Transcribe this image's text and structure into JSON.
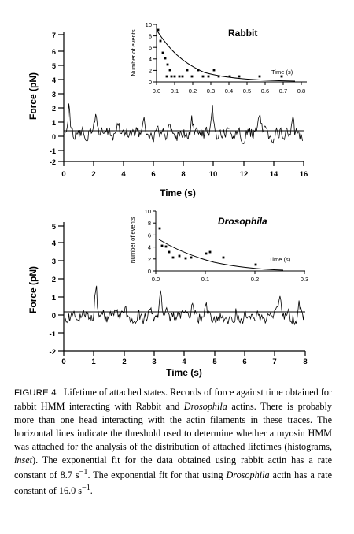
{
  "figure": {
    "top": {
      "ylabel": "Force (pN)",
      "xlabel": "Time (s)",
      "xticks": [
        "0",
        "2",
        "4",
        "6",
        "8",
        "10",
        "12",
        "14",
        "16"
      ],
      "yticks": [
        "-2",
        "-1",
        "0",
        "1",
        "2",
        "3",
        "4",
        "5",
        "6",
        "7"
      ],
      "inset": {
        "label": "Rabbit",
        "ylabel": "Number of events",
        "xlabel": "Time (s)",
        "xticks": [
          "0.0",
          "0.1",
          "0.2",
          "0.3",
          "0.4",
          "0.5",
          "0.6",
          "0.7",
          "0.8"
        ],
        "yticks": [
          "0",
          "2",
          "4",
          "6",
          "8",
          "10"
        ]
      }
    },
    "bottom": {
      "ylabel": "Force (pN)",
      "xlabel": "Time (s)",
      "xticks": [
        "0",
        "1",
        "2",
        "3",
        "4",
        "5",
        "6",
        "7",
        "8"
      ],
      "yticks": [
        "-2",
        "-1",
        "0",
        "1",
        "2",
        "3",
        "4",
        "5"
      ],
      "inset": {
        "label": "Drosophila",
        "ylabel": "Number of events",
        "xlabel": "Time (s)",
        "xticks": [
          "0.0",
          "0.1",
          "0.2",
          "0.3"
        ],
        "yticks": [
          "0",
          "2",
          "4",
          "6",
          "8",
          "10"
        ]
      }
    }
  },
  "caption": {
    "label": "FIGURE 4",
    "title": "Lifetime of attached states.",
    "s1": " Records of force against time obtained for rabbit HMM interacting with Rabbit and ",
    "s1_i": "Drosophila",
    "s2": " actins. There is probably more than one head interacting with the actin filaments in these traces. The horizontal lines indicate the threshold used to determine whether a myosin HMM was attached for the analysis of the distribution of attached lifetimes (histograms, ",
    "s2_i": "inset",
    "s3": "). The exponential fit for the data obtained using rabbit actin has a rate constant of 8.7 s",
    "s3_sup": "−1",
    "s4": ". The exponential fit for that using ",
    "s4_i": "Drosophila",
    "s5": " actin has a rate constant of 16.0 s",
    "s5_sup": "−1",
    "s6": "."
  }
}
